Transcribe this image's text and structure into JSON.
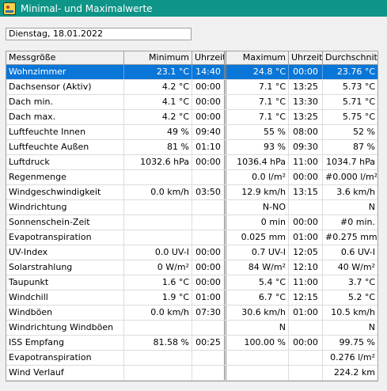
{
  "window": {
    "title": "Minimal- und Maximalwerte",
    "icon": "app-weather-icon",
    "accent": "#0f9488"
  },
  "date_field": {
    "value": "Dienstag, 18.01.2022"
  },
  "table": {
    "headers": [
      "Messgröße",
      "Minimum",
      "Uhrzeit",
      "Maximum",
      "Uhrzeit",
      "Durchschnitt"
    ],
    "selected_row": 0,
    "selection_color": "#0a76d8",
    "rows": [
      [
        "Wohnzimmer",
        "23.1 °C",
        "14:40",
        "24.8 °C",
        "00:00",
        "23.76 °C"
      ],
      [
        "Dachsensor (Aktiv)",
        "4.2 °C",
        "00:00",
        "7.1 °C",
        "13:25",
        "5.73 °C"
      ],
      [
        "Dach min.",
        "4.1 °C",
        "00:00",
        "7.1 °C",
        "13:30",
        "5.71 °C"
      ],
      [
        "Dach max.",
        "4.2 °C",
        "00:00",
        "7.1 °C",
        "13:25",
        "5.75 °C"
      ],
      [
        "Luftfeuchte Innen",
        "49 %",
        "09:40",
        "55 %",
        "08:00",
        "52 %"
      ],
      [
        "Luftfeuchte Außen",
        "81 %",
        "01:10",
        "93 %",
        "09:30",
        "87 %"
      ],
      [
        "Luftdruck",
        "1032.6 hPa",
        "00:00",
        "1036.4 hPa",
        "11:00",
        "1034.7 hPa"
      ],
      [
        "Regenmenge",
        "",
        "",
        "0.0 l/m²",
        "00:00",
        "#0.000 l/m²"
      ],
      [
        "Windgeschwindigkeit",
        "0.0 km/h",
        "03:50",
        "12.9 km/h",
        "13:15",
        "3.6 km/h"
      ],
      [
        "Windrichtung",
        "",
        "",
        "N-NO",
        "",
        "N"
      ],
      [
        "Sonnenschein-Zeit",
        "",
        "",
        "0 min",
        "00:00",
        "#0 min."
      ],
      [
        "Evapotranspiration",
        "",
        "",
        "0.025 mm",
        "01:00",
        "#0.275 mm"
      ],
      [
        "UV-Index",
        "0.0 UV-I",
        "00:00",
        "0.7 UV-I",
        "12:05",
        "0.6 UV-I"
      ],
      [
        "Solarstrahlung",
        "0 W/m²",
        "00:00",
        "84 W/m²",
        "12:10",
        "40 W/m²"
      ],
      [
        "Taupunkt",
        "1.6 °C",
        "00:00",
        "5.4 °C",
        "11:00",
        "3.7 °C"
      ],
      [
        "Windchill",
        "1.9 °C",
        "01:00",
        "6.7 °C",
        "12:15",
        "5.2 °C"
      ],
      [
        "Windböen",
        "0.0 km/h",
        "07:30",
        "30.6 km/h",
        "01:00",
        "10.5 km/h"
      ],
      [
        "Windrichtung Windböen",
        "",
        "",
        "N",
        "",
        "N"
      ],
      [
        "ISS Empfang",
        "81.58 %",
        "00:25",
        "100.00 %",
        "00:00",
        "99.75 %"
      ],
      [
        "Evapotranspiration",
        "",
        "",
        "",
        "",
        "0.276 l/m²"
      ],
      [
        "Wind Verlauf",
        "",
        "",
        "",
        "",
        "224.2 km"
      ]
    ]
  }
}
